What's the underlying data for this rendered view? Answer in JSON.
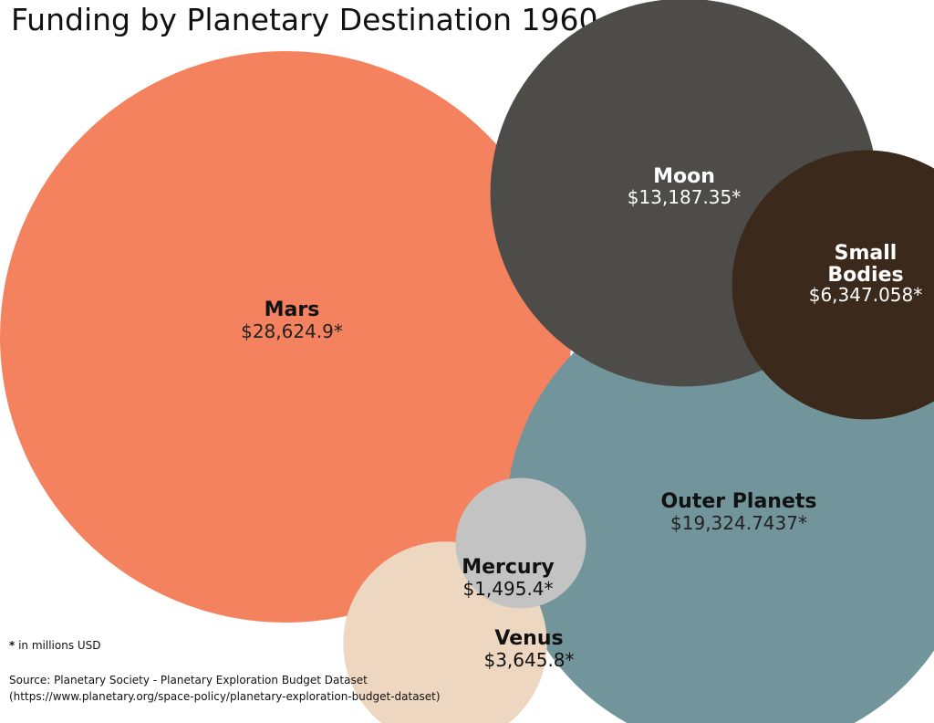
{
  "title": "Funding by Planetary Destination 1960 - Present",
  "chart_data": {
    "type": "bubble",
    "title": "Funding by Planetary Destination 1960 - Present",
    "unit_note": "in millions USD",
    "series": [
      {
        "name": "Mars",
        "value": 28624.9,
        "label": "$28,624.9*",
        "color": "#f5825e"
      },
      {
        "name": "Moon",
        "value": 13187.35,
        "label": "$13,187.35*",
        "color": "#4d4c48"
      },
      {
        "name": "Small Bodies",
        "value": 6347.058,
        "label": "$6,347.058*",
        "color": "#3b2a1c"
      },
      {
        "name": "Outer Planets",
        "value": 19324.7437,
        "label": "$19,324.7437*",
        "color": "#71959a"
      },
      {
        "name": "Mercury",
        "value": 1495.4,
        "label": "$1,495.4*",
        "color": "#c3c3c3"
      },
      {
        "name": "Venus",
        "value": 3645.8,
        "label": "$3,645.8*",
        "color": "#eed7c1"
      }
    ]
  },
  "footnotes": {
    "asterisk": "*",
    "note": " in millions USD",
    "source": "Source: Planetary Society - Planetary Exploration Budget Dataset",
    "source_url": "(https://www.planetary.org/space-policy/planetary-exploration-budget-dataset)"
  }
}
